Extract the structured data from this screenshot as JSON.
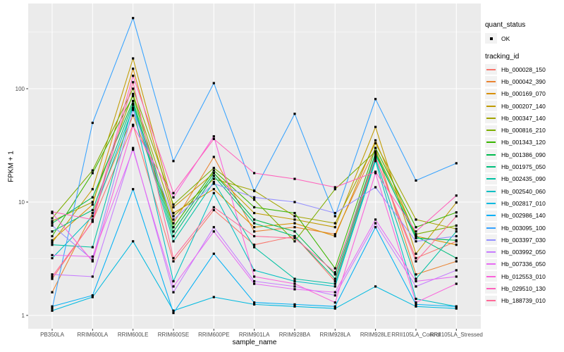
{
  "legend": {
    "quant_status_title": "quant_status",
    "quant_status_items": [
      {
        "label": "OK",
        "marker": "black-point"
      }
    ],
    "tracking_title": "tracking_id"
  },
  "axes": {
    "x_title": "sample_name",
    "y_title": "FPKM + 1",
    "y_tick_labels": [
      "1",
      "10",
      "100"
    ]
  },
  "chart_data": {
    "type": "line",
    "title": "",
    "xlabel": "sample_name",
    "ylabel": "FPKM + 1",
    "yscale": "log10",
    "ylim": [
      0.74,
      565
    ],
    "y_major_ticks": [
      1,
      10,
      100
    ],
    "y_minor_ticks": [
      3.162,
      31.62,
      316.2
    ],
    "grid": "on",
    "legend_position": "right",
    "panel_background": "#EBEBEB",
    "grid_color": "#FFFFFF",
    "marker": "black-square",
    "quant_status_value": "OK",
    "categories": [
      "PB350LA",
      "RRIM600LA",
      "RRIM600LE",
      "RRIM600SE",
      "RRIM600PE",
      "RRIM901LA",
      "RRIM928BA",
      "RRIM928LA",
      "RRIM928LE",
      "RRII105LA_Control",
      "RRII105LA_Stressed"
    ],
    "series": [
      {
        "name": "Hb_000028_150",
        "color": "#F8766D",
        "values": [
          2.1,
          6.8,
          48,
          3.0,
          8.5,
          4.2,
          5.0,
          2.0,
          25,
          3.2,
          4.5
        ]
      },
      {
        "name": "Hb_000042_390",
        "color": "#EA8331",
        "values": [
          1.6,
          8.0,
          58,
          6.5,
          25,
          5.5,
          6.0,
          5.2,
          30,
          2.3,
          3.0
        ]
      },
      {
        "name": "Hb_000169_070",
        "color": "#D89000",
        "values": [
          4.6,
          9.5,
          150,
          8.0,
          13,
          6.0,
          6.5,
          5.0,
          35,
          5.0,
          4.2
        ]
      },
      {
        "name": "Hb_000207_140",
        "color": "#C09B00",
        "values": [
          4.4,
          13,
          185,
          9.0,
          18,
          8.0,
          7.0,
          6.0,
          46,
          3.5,
          9.9
        ]
      },
      {
        "name": "Hb_000347_140",
        "color": "#A3A500",
        "values": [
          6.8,
          10,
          90,
          7.5,
          16,
          12.6,
          7.5,
          6.5,
          33,
          7.0,
          5.8
        ]
      },
      {
        "name": "Hb_000816_210",
        "color": "#7CAE00",
        "values": [
          7.2,
          19,
          100,
          9.5,
          20,
          10.5,
          4.5,
          13,
          28,
          5.2,
          6.2
        ]
      },
      {
        "name": "Hb_001343_120",
        "color": "#39B600",
        "values": [
          5.0,
          18,
          86,
          6.0,
          19,
          9.0,
          8.0,
          2.6,
          30,
          6.0,
          8.1
        ]
      },
      {
        "name": "Hb_001386_090",
        "color": "#00BB4E",
        "values": [
          6.5,
          11,
          78,
          5.5,
          18,
          7.0,
          5.5,
          2.3,
          27,
          4.8,
          4.6
        ]
      },
      {
        "name": "Hb_001975_050",
        "color": "#00BF7D",
        "values": [
          5.5,
          8.5,
          74,
          5.0,
          17,
          6.5,
          5.0,
          2.1,
          26,
          5.0,
          3.2
        ]
      },
      {
        "name": "Hb_002435_090",
        "color": "#00C1A3",
        "values": [
          4.2,
          4.0,
          72,
          4.5,
          15,
          4.0,
          2.1,
          1.9,
          24,
          2.1,
          5.5
        ]
      },
      {
        "name": "Hb_002540_060",
        "color": "#00BFC4",
        "values": [
          3.2,
          7.5,
          68,
          2.0,
          12,
          2.5,
          2.0,
          1.8,
          23,
          1.4,
          1.2
        ]
      },
      {
        "name": "Hb_002817_010",
        "color": "#00BAE0",
        "values": [
          1.1,
          1.45,
          4.5,
          1.1,
          1.45,
          1.25,
          1.2,
          1.15,
          1.8,
          1.2,
          1.15
        ]
      },
      {
        "name": "Hb_002986_140",
        "color": "#00B0F6",
        "values": [
          1.2,
          1.5,
          13,
          1.05,
          3.5,
          1.3,
          1.25,
          1.2,
          6.0,
          1.25,
          1.2
        ]
      },
      {
        "name": "Hb_003095_100",
        "color": "#35A2FF",
        "values": [
          1.15,
          50,
          420,
          23,
          112,
          12.5,
          60,
          7.5,
          81,
          15.5,
          22
        ]
      },
      {
        "name": "Hb_003397_030",
        "color": "#9590FF",
        "values": [
          6.2,
          3.1,
          65,
          7.0,
          14.5,
          11,
          10,
          8.0,
          13.5,
          4.5,
          5.0
        ]
      },
      {
        "name": "Hb_003992_050",
        "color": "#C77CFF",
        "values": [
          2.3,
          2.2,
          30,
          1.6,
          6.0,
          2.0,
          1.8,
          1.5,
          6.5,
          1.8,
          2.5
        ]
      },
      {
        "name": "Hb_007336_050",
        "color": "#E76BF3",
        "values": [
          3.4,
          3.3,
          29,
          1.8,
          5.5,
          1.9,
          1.7,
          1.6,
          7.0,
          2.0,
          2.2
        ]
      },
      {
        "name": "Hb_012553_010",
        "color": "#FA62DB",
        "values": [
          8.0,
          3.0,
          47,
          11,
          38,
          2.2,
          1.9,
          1.3,
          18,
          1.3,
          1.9
        ]
      },
      {
        "name": "Hb_029510_130",
        "color": "#FF62BC",
        "values": [
          8.2,
          7.0,
          130,
          12,
          36,
          18,
          16,
          13.5,
          18.5,
          5.5,
          11.4
        ]
      },
      {
        "name": "Hb_188739_010",
        "color": "#FF6A98",
        "values": [
          2.2,
          6.7,
          114,
          3.2,
          9.0,
          5.0,
          4.8,
          2.4,
          25,
          3.0,
          7.5
        ]
      }
    ]
  }
}
